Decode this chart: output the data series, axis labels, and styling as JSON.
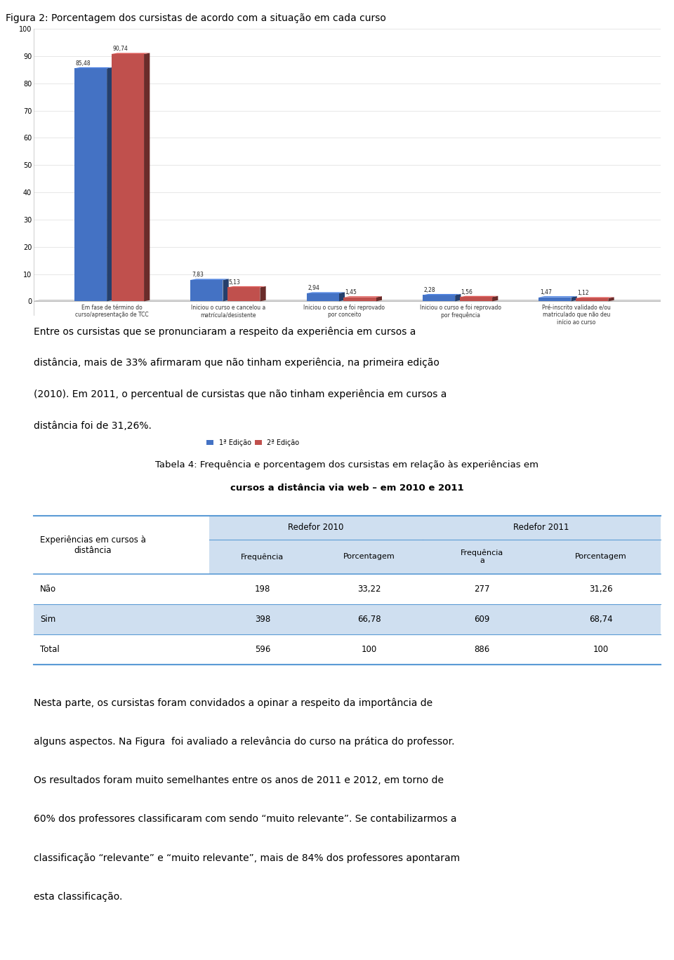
{
  "fig_title": "Figura 2: Porcentagem dos cursistas de acordo com a situação em cada curso",
  "bar_categories": [
    "Em fase de término do\ncurso/apresentação de TCC",
    "Iniciou o curso e cancelou a\nmatrícula/desistente",
    "Iniciou o curso e foi reprovado\npor conceito",
    "Iniciou o curso e foi reprovado\npor frequência",
    "Pré-inscrito validado e/ou\nmatriculado que não deu\ninício ao curso"
  ],
  "series1_values": [
    85.48,
    7.83,
    2.94,
    2.28,
    1.47
  ],
  "series2_values": [
    90.74,
    5.13,
    1.45,
    1.56,
    1.12
  ],
  "series1_label": "1ª Edição",
  "series2_label": "2ª Edição",
  "bar_color1": "#4472C4",
  "bar_color2": "#C0504D",
  "ylim": [
    0,
    100
  ],
  "yticks": [
    0,
    10,
    20,
    30,
    40,
    50,
    60,
    70,
    80,
    90,
    100
  ],
  "paragraph1": "Entre os cursistas que se pronunciaram a respeito da experiência em cursos a distância, mais de 33% afirmaram que não tinham experiência, na primeira edição (2010). Em 2011, o percentual de cursistas que não tinham experiência em cursos a distância foi de 31,26%.",
  "table_title_line1": "Tabela 4: Frequência e porcentagem dos cursistas em relação às experiências em",
  "table_title_line2": "cursos a distância via web – em 2010 e 2011",
  "table_rows": [
    [
      "Não",
      "198",
      "33,22",
      "277",
      "31,26"
    ],
    [
      "Sim",
      "398",
      "66,78",
      "609",
      "68,74"
    ],
    [
      "Total",
      "596",
      "100",
      "886",
      "100"
    ]
  ],
  "table_bg_color": "#CFDFF0",
  "border_color": "#5B9BD5",
  "paragraph2": "Nesta parte, os cursistas foram convidados a opinar a respeito da importância de alguns aspectos. Na Figura  foi avaliado a relevância do curso na prática do professor. Os resultados foram muito semelhantes entre os anos de 2011 e 2012, em torno de 60% dos professores classificaram com sendo “muito relevante”. Se contabilizarmos a classificação “relevante” e “muito relevante”, mais de 84% dos professores apontaram esta classificação."
}
